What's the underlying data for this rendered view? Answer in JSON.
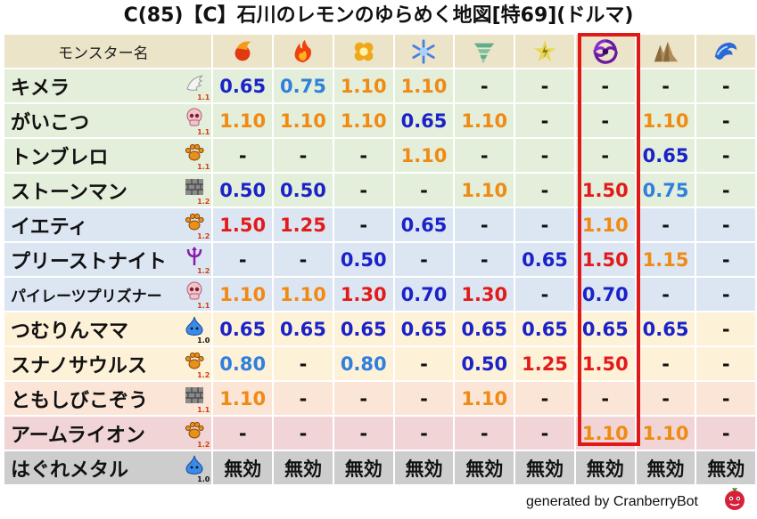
{
  "title": "C(85)【C】石川のレモンのゆらめく地図[特69](ドルマ)",
  "header_label": "モンスター名",
  "elements": [
    {
      "name": "mera",
      "icon": "fire-ball-icon"
    },
    {
      "name": "gira",
      "icon": "flame-icon"
    },
    {
      "name": "io",
      "icon": "explosion-icon"
    },
    {
      "name": "hyado",
      "icon": "ice-crystal-icon"
    },
    {
      "name": "baki",
      "icon": "tornado-icon"
    },
    {
      "name": "dein",
      "icon": "lightning-star-icon"
    },
    {
      "name": "doruma",
      "icon": "dark-swirl-icon"
    },
    {
      "name": "jibaria",
      "icon": "rock-spikes-icon"
    },
    {
      "name": "water",
      "icon": "wave-icon"
    }
  ],
  "highlight_column": 6,
  "rows": [
    {
      "name": "キメラ",
      "icon": "wing-icon",
      "scale": "1.1",
      "row_color": "green",
      "values": [
        "0.65",
        "0.75",
        "1.10",
        "1.10",
        "-",
        "-",
        "-",
        "-",
        "-"
      ],
      "colors": [
        "b",
        "lb",
        "o",
        "o",
        "k",
        "k",
        "k",
        "k",
        "k"
      ]
    },
    {
      "name": "がいこつ",
      "icon": "skull-icon",
      "scale": "1.1",
      "row_color": "green",
      "values": [
        "1.10",
        "1.10",
        "1.10",
        "0.65",
        "1.10",
        "-",
        "-",
        "1.10",
        "-"
      ],
      "colors": [
        "o",
        "o",
        "o",
        "b",
        "o",
        "k",
        "k",
        "o",
        "k"
      ]
    },
    {
      "name": "トンブレロ",
      "icon": "paw-icon",
      "scale": "1.1",
      "row_color": "green",
      "values": [
        "-",
        "-",
        "-",
        "1.10",
        "-",
        "-",
        "-",
        "0.65",
        "-"
      ],
      "colors": [
        "k",
        "k",
        "k",
        "o",
        "k",
        "k",
        "k",
        "b",
        "k"
      ]
    },
    {
      "name": "ストーンマン",
      "icon": "brick-icon",
      "scale": "1.2",
      "row_color": "green",
      "values": [
        "0.50",
        "0.50",
        "-",
        "-",
        "1.10",
        "-",
        "1.50",
        "0.75",
        "-"
      ],
      "colors": [
        "b",
        "b",
        "k",
        "k",
        "o",
        "k",
        "r",
        "lb",
        "k"
      ]
    },
    {
      "name": "イエティ",
      "icon": "paw-icon",
      "scale": "1.2",
      "row_color": "blue",
      "values": [
        "1.50",
        "1.25",
        "-",
        "0.65",
        "-",
        "-",
        "1.10",
        "-",
        "-"
      ],
      "colors": [
        "r",
        "r",
        "k",
        "b",
        "k",
        "k",
        "o",
        "k",
        "k"
      ]
    },
    {
      "name": "プリーストナイト",
      "icon": "trident-icon",
      "scale": "1.2",
      "row_color": "blue",
      "values": [
        "-",
        "-",
        "0.50",
        "-",
        "-",
        "0.65",
        "1.50",
        "1.15",
        "-"
      ],
      "colors": [
        "k",
        "k",
        "b",
        "k",
        "k",
        "b",
        "r",
        "o",
        "k"
      ]
    },
    {
      "name": "パイレーツプリズナー",
      "icon": "skull-icon",
      "scale": "1.1",
      "row_color": "blue",
      "small": true,
      "values": [
        "1.10",
        "1.10",
        "1.30",
        "0.70",
        "1.30",
        "-",
        "0.70",
        "-",
        "-"
      ],
      "colors": [
        "o",
        "o",
        "r",
        "b",
        "r",
        "k",
        "b",
        "k",
        "k"
      ]
    },
    {
      "name": "つむりんママ",
      "icon": "slime-icon",
      "scale": "1.0",
      "row_color": "yellow",
      "scale_black": true,
      "values": [
        "0.65",
        "0.65",
        "0.65",
        "0.65",
        "0.65",
        "0.65",
        "0.65",
        "0.65",
        "-"
      ],
      "colors": [
        "b",
        "b",
        "b",
        "b",
        "b",
        "b",
        "b",
        "b",
        "k"
      ]
    },
    {
      "name": "スナノサウルス",
      "icon": "paw-icon",
      "scale": "1.2",
      "row_color": "yellow",
      "values": [
        "0.80",
        "-",
        "0.80",
        "-",
        "0.50",
        "1.25",
        "1.50",
        "-",
        "-"
      ],
      "colors": [
        "lb",
        "k",
        "lb",
        "k",
        "b",
        "r",
        "r",
        "k",
        "k"
      ]
    },
    {
      "name": "ともしびこぞう",
      "icon": "brick-icon",
      "scale": "1.1",
      "row_color": "orange",
      "values": [
        "1.10",
        "-",
        "-",
        "-",
        "1.10",
        "-",
        "-",
        "-",
        "-"
      ],
      "colors": [
        "o",
        "k",
        "k",
        "k",
        "o",
        "k",
        "k",
        "k",
        "k"
      ]
    },
    {
      "name": "アームライオン",
      "icon": "paw-icon",
      "scale": "1.2",
      "row_color": "red",
      "values": [
        "-",
        "-",
        "-",
        "-",
        "-",
        "-",
        "1.10",
        "1.10",
        "-"
      ],
      "colors": [
        "k",
        "k",
        "k",
        "k",
        "k",
        "k",
        "o",
        "o",
        "k"
      ]
    },
    {
      "name": "はぐれメタル",
      "icon": "slime-icon",
      "scale": "1.0",
      "row_color": "gray",
      "scale_black": true,
      "values": [
        "無効",
        "無効",
        "無効",
        "無効",
        "無効",
        "無効",
        "無効",
        "無効",
        "無効"
      ],
      "colors": [
        "k",
        "k",
        "k",
        "k",
        "k",
        "k",
        "k",
        "k",
        "k"
      ]
    }
  ],
  "footer": "generated by CranberryBot",
  "footer_icon": "cranberry-bot-icon"
}
